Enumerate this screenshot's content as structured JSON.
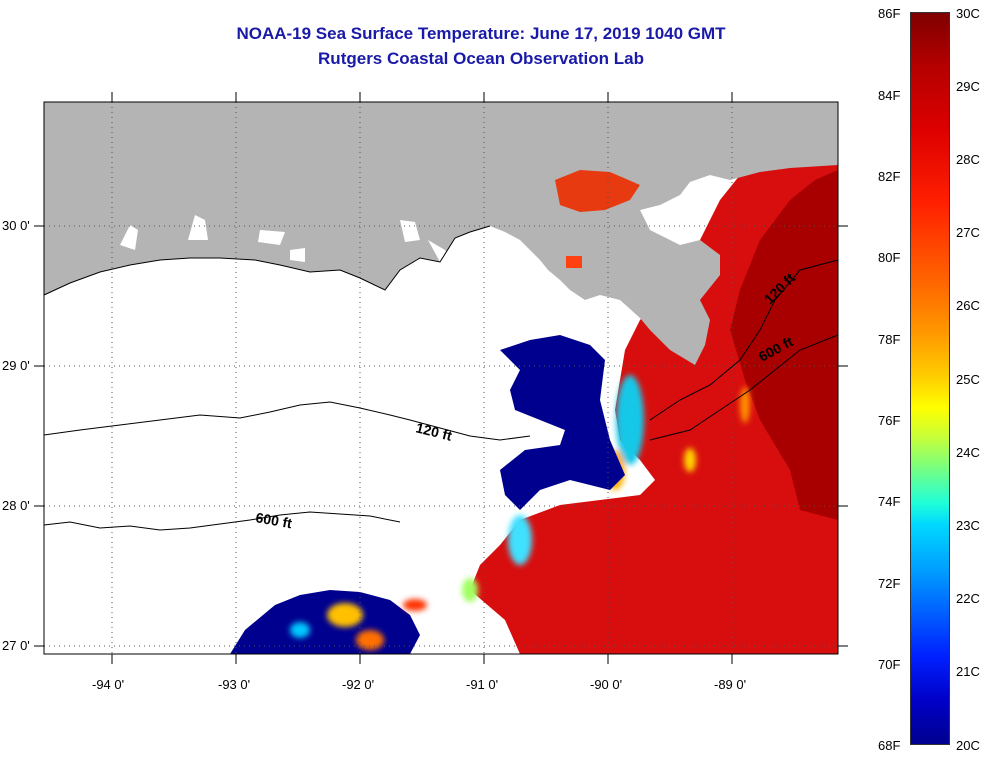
{
  "title": {
    "line1": "NOAA-19 Sea Surface Temperature:  June 17, 2019 1040 GMT",
    "line2": "Rutgers Coastal Ocean Observation Lab"
  },
  "map": {
    "lat_labels": [
      "30 0'",
      "29 0'",
      "28 0'",
      "27 0'"
    ],
    "lon_labels": [
      "-94 0'",
      "-93 0'",
      "-92 0'",
      "-91 0'",
      "-90 0'",
      "-89 0'"
    ],
    "contour_labels": [
      "120 ft",
      "600 ft",
      "120 ft",
      "600 ft"
    ],
    "colors": {
      "land": "#b4b4b4",
      "cloud_nodata": "#ffffff",
      "cold_water": "#00008c",
      "warm_water": "#e01010"
    }
  },
  "colorbar": {
    "fahrenheit": [
      "86F",
      "84F",
      "82F",
      "80F",
      "78F",
      "76F",
      "74F",
      "72F",
      "70F",
      "68F"
    ],
    "celsius": [
      "30C",
      "29C",
      "28C",
      "27C",
      "26C",
      "25C",
      "24C",
      "23C",
      "22C",
      "21C",
      "20C"
    ]
  }
}
